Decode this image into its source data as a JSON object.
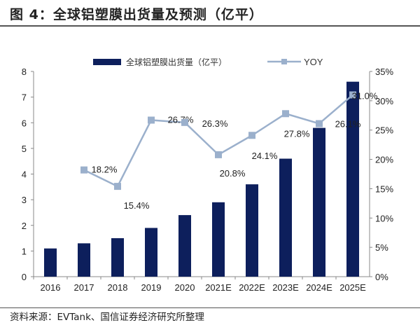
{
  "title": "图 4：全球铝塑膜出货量及预测（亿平）",
  "source": "资料来源：EVTank、国信证券经济研究所整理",
  "chart_data": {
    "type": "bar+line",
    "categories": [
      "2016",
      "2017",
      "2018",
      "2019",
      "2020",
      "2021E",
      "2022E",
      "2023E",
      "2024E",
      "2025E"
    ],
    "series": [
      {
        "name": "全球铝塑膜出货量（亿平）",
        "type": "bar",
        "axis": "left",
        "color": "#0d1f5c",
        "values": [
          1.1,
          1.3,
          1.5,
          1.9,
          2.4,
          2.9,
          3.6,
          4.6,
          5.8,
          7.6
        ]
      },
      {
        "name": "YOY",
        "type": "line",
        "axis": "right",
        "color": "#9bb0cc",
        "values": [
          null,
          18.2,
          15.4,
          26.7,
          26.3,
          20.8,
          24.1,
          27.8,
          26.1,
          31.0
        ],
        "labels": [
          "",
          "18.2%",
          "15.4%",
          "26.7%",
          "26.3%",
          "20.8%",
          "24.1%",
          "27.8%",
          "26.1%",
          "31.0%"
        ]
      }
    ],
    "y_left": {
      "range": [
        0,
        8
      ],
      "ticks": [
        "0",
        "1",
        "2",
        "3",
        "4",
        "5",
        "6",
        "7",
        "8"
      ]
    },
    "y_right": {
      "range": [
        0,
        35
      ],
      "ticks": [
        "0%",
        "5%",
        "10%",
        "15%",
        "20%",
        "25%",
        "30%",
        "35%"
      ]
    },
    "legend_placement": "top",
    "grid": false
  }
}
